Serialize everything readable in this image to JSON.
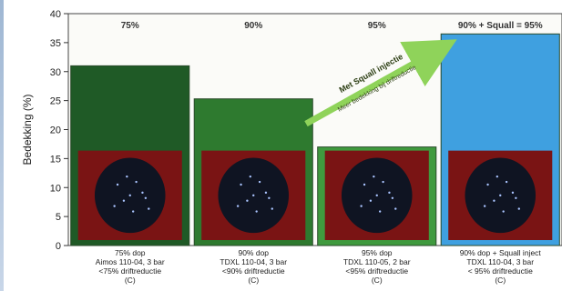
{
  "chart_data": {
    "type": "bar",
    "ylabel": "Bedekking (%)",
    "ylim": [
      0,
      40
    ],
    "yticks": [
      0,
      5,
      10,
      15,
      20,
      25,
      30,
      35,
      40
    ],
    "grid": false,
    "categories": [
      [
        "75% dop",
        "Aimos 110-04, 3 bar",
        "<75% driftreductie",
        "(C)"
      ],
      [
        "90% dop",
        "TDXL 110-04, 3 bar",
        "<90% driftreductie",
        "(C)"
      ],
      [
        "95% dop",
        "TDXL 110-05, 2 bar",
        "<95% driftreductie",
        "(C)"
      ],
      [
        "90% dop + Squall inject",
        "TDXL 110-04, 3 bar",
        "< 95% driftreductie",
        "(C)"
      ]
    ],
    "top_labels": [
      "75%",
      "90%",
      "95%",
      "90% + Squall = 95%"
    ],
    "values": [
      31,
      25.3,
      17,
      36.5
    ],
    "bar_colors": [
      "#1f5a26",
      "#2e7a2f",
      "#3f9a3e",
      "#3fa0e0"
    ],
    "annotation": {
      "text": "Met Squall injectie",
      "subtext": "Meer bedekking bij driftreductie"
    }
  }
}
